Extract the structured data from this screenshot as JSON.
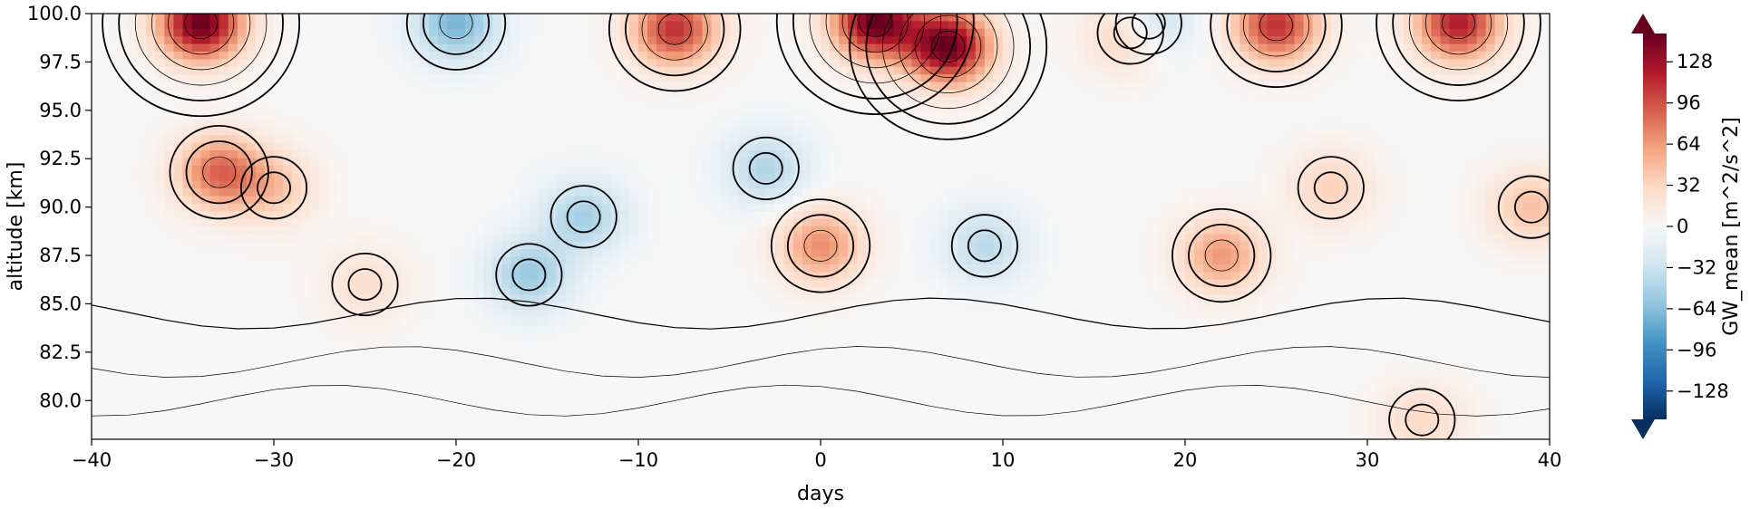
{
  "chart_data": {
    "type": "heatmap",
    "title": "",
    "xlabel": "days",
    "ylabel": "altitude [km]",
    "xlim": [
      -40,
      40
    ],
    "ylim": [
      78,
      100
    ],
    "x_ticks": [
      -40,
      -30,
      -20,
      -10,
      0,
      10,
      20,
      30,
      40
    ],
    "x_tick_labels": [
      "−40",
      "−30",
      "−20",
      "−10",
      "0",
      "10",
      "20",
      "30",
      "40"
    ],
    "y_ticks": [
      80.0,
      82.5,
      85.0,
      87.5,
      90.0,
      92.5,
      95.0,
      97.5,
      100.0
    ],
    "y_tick_labels": [
      "80.0",
      "82.5",
      "85.0",
      "87.5",
      "90.0",
      "92.5",
      "95.0",
      "97.5",
      "100.0"
    ],
    "colorbar": {
      "label": "GW_mean [m^2/s^2]",
      "colormap": "RdBu_r",
      "range": [
        -150,
        150
      ],
      "extend": "both",
      "ticks": [
        -128,
        -96,
        -64,
        -32,
        0,
        32,
        64,
        96,
        128
      ],
      "tick_labels": [
        "−128",
        "−96",
        "−64",
        "−32",
        "0",
        "32",
        "64",
        "96",
        "128"
      ],
      "stops": [
        "#053061",
        "#2166ac",
        "#4393c3",
        "#92c5de",
        "#d1e5f0",
        "#f7f7f7",
        "#fddbc7",
        "#f4a582",
        "#d6604d",
        "#b2182b",
        "#67001f"
      ]
    },
    "features": [
      {
        "x": -34,
        "y": 99.5,
        "value": 150
      },
      {
        "x": -33,
        "y": 91.8,
        "value": 85
      },
      {
        "x": -30,
        "y": 91.0,
        "value": 40
      },
      {
        "x": -20,
        "y": 99.5,
        "value": -70
      },
      {
        "x": -16,
        "y": 86.5,
        "value": -55
      },
      {
        "x": -13,
        "y": 89.5,
        "value": -50
      },
      {
        "x": -8,
        "y": 99.2,
        "value": 110
      },
      {
        "x": -3,
        "y": 92.0,
        "value": -45
      },
      {
        "x": 0,
        "y": 88.0,
        "value": 70
      },
      {
        "x": 3,
        "y": 99.6,
        "value": 150
      },
      {
        "x": 7,
        "y": 98.3,
        "value": 150
      },
      {
        "x": 9,
        "y": 88.0,
        "value": -40
      },
      {
        "x": 18,
        "y": 99.5,
        "value": -60
      },
      {
        "x": 17,
        "y": 99.0,
        "value": 60
      },
      {
        "x": 22,
        "y": 87.5,
        "value": 65
      },
      {
        "x": 25,
        "y": 99.4,
        "value": 110
      },
      {
        "x": 28,
        "y": 91.0,
        "value": 35
      },
      {
        "x": 35,
        "y": 99.5,
        "value": 120
      },
      {
        "x": 39,
        "y": 90.0,
        "value": 45
      },
      {
        "x": 33,
        "y": 79.0,
        "value": 30
      },
      {
        "x": -25,
        "y": 86.0,
        "value": 25
      }
    ]
  }
}
